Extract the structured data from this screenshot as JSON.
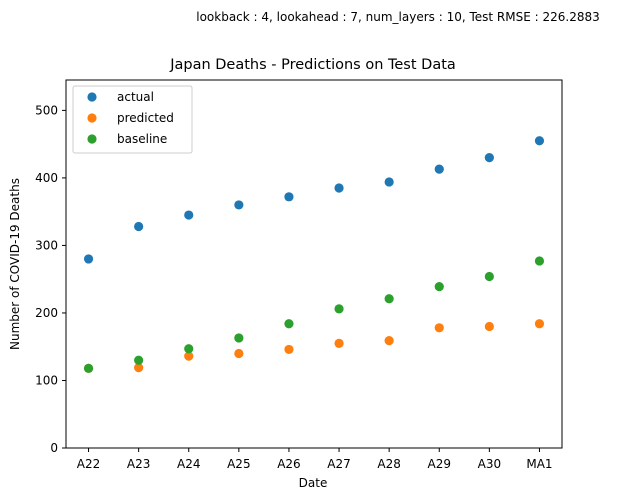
{
  "suptitle": "lookback : 4, lookahead : 7, num_layers : 10, Test RMSE : 226.2883",
  "chart_data": {
    "type": "scatter",
    "title": "Japan Deaths - Predictions on Test Data",
    "xlabel": "Date",
    "ylabel": "Number of COVID-19 Deaths",
    "categories": [
      "A22",
      "A23",
      "A24",
      "A25",
      "A26",
      "A27",
      "A28",
      "A29",
      "A30",
      "MA1"
    ],
    "ylim": [
      0,
      545
    ],
    "yticks": [
      0,
      100,
      200,
      300,
      400,
      500
    ],
    "grid": false,
    "legend_position": "top-left",
    "series": [
      {
        "name": "actual",
        "color": "#1f77b4",
        "values": [
          280,
          328,
          345,
          360,
          372,
          385,
          394,
          413,
          430,
          455
        ]
      },
      {
        "name": "predicted",
        "color": "#ff7f0e",
        "values": [
          118,
          119,
          136,
          140,
          146,
          155,
          159,
          178,
          180,
          184
        ]
      },
      {
        "name": "baseline",
        "color": "#2ca02c",
        "values": [
          118,
          130,
          147,
          163,
          184,
          206,
          221,
          239,
          254,
          277
        ]
      }
    ]
  }
}
